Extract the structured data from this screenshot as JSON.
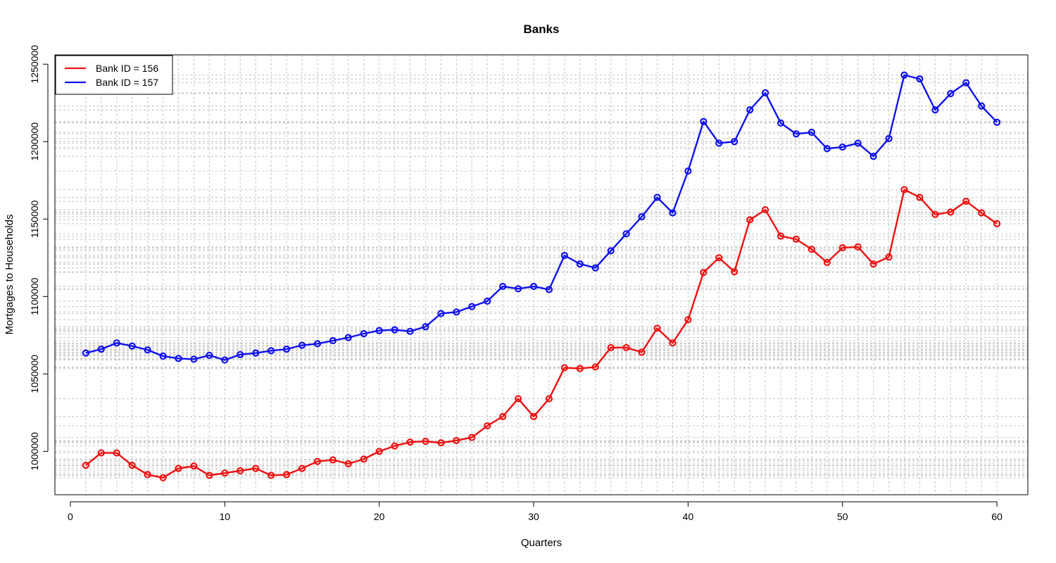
{
  "chart_data": {
    "type": "line",
    "title": "Banks",
    "xlabel": "Quarters",
    "ylabel": "Mortgages to Households",
    "xlim": [
      -1,
      62
    ],
    "ylim": [
      972000,
      1256000
    ],
    "x_ticks": [
      0,
      10,
      20,
      30,
      40,
      50,
      60
    ],
    "y_ticks": [
      1000000,
      1050000,
      1100000,
      1150000,
      1200000,
      1250000
    ],
    "grid": true,
    "legend_position": "top-left",
    "x": [
      1,
      2,
      3,
      4,
      5,
      6,
      7,
      8,
      9,
      10,
      11,
      12,
      13,
      14,
      15,
      16,
      17,
      18,
      19,
      20,
      21,
      22,
      23,
      24,
      25,
      26,
      27,
      28,
      29,
      30,
      31,
      32,
      33,
      34,
      35,
      36,
      37,
      38,
      39,
      40,
      41,
      42,
      43,
      44,
      45,
      46,
      47,
      48,
      49,
      50,
      51,
      52,
      53,
      54,
      55,
      56,
      57,
      58,
      59,
      60
    ],
    "series": [
      {
        "name": "Bank ID = 156",
        "color": "#ee1111",
        "values": [
          991000,
          999000,
          999000,
          991000,
          985000,
          983000,
          989000,
          990500,
          984500,
          986000,
          987500,
          989000,
          984500,
          985000,
          989000,
          993500,
          994500,
          992000,
          995000,
          1000000,
          1003500,
          1006000,
          1006500,
          1005500,
          1007000,
          1009000,
          1016500,
          1022500,
          1034000,
          1022500,
          1034000,
          1054000,
          1053500,
          1054500,
          1067000,
          1067000,
          1064000,
          1079500,
          1070000,
          1085000,
          1115500,
          1125000,
          1116000,
          1149500,
          1156000,
          1139000,
          1137000,
          1130500,
          1122000,
          1131500,
          1132000,
          1121000,
          1125500,
          1169000,
          1164000,
          1153000,
          1154500,
          1161500,
          1154000,
          1147000
        ]
      },
      {
        "name": "Bank ID = 157",
        "color": "#1111ee",
        "values": [
          1063500,
          1066000,
          1070000,
          1068000,
          1065500,
          1061500,
          1060000,
          1059500,
          1062000,
          1059000,
          1062500,
          1063500,
          1065000,
          1066000,
          1068500,
          1069500,
          1071500,
          1073500,
          1076000,
          1078000,
          1078500,
          1077500,
          1080500,
          1089000,
          1090000,
          1093500,
          1097000,
          1106500,
          1105000,
          1106500,
          1104500,
          1126500,
          1121000,
          1118500,
          1129500,
          1140500,
          1151500,
          1164000,
          1154000,
          1181000,
          1213000,
          1199000,
          1200000,
          1220500,
          1231500,
          1212000,
          1205000,
          1206000,
          1195500,
          1196500,
          1199000,
          1190500,
          1202000,
          1243000,
          1240500,
          1220500,
          1231000,
          1238000,
          1223000,
          1212500
        ]
      }
    ]
  }
}
